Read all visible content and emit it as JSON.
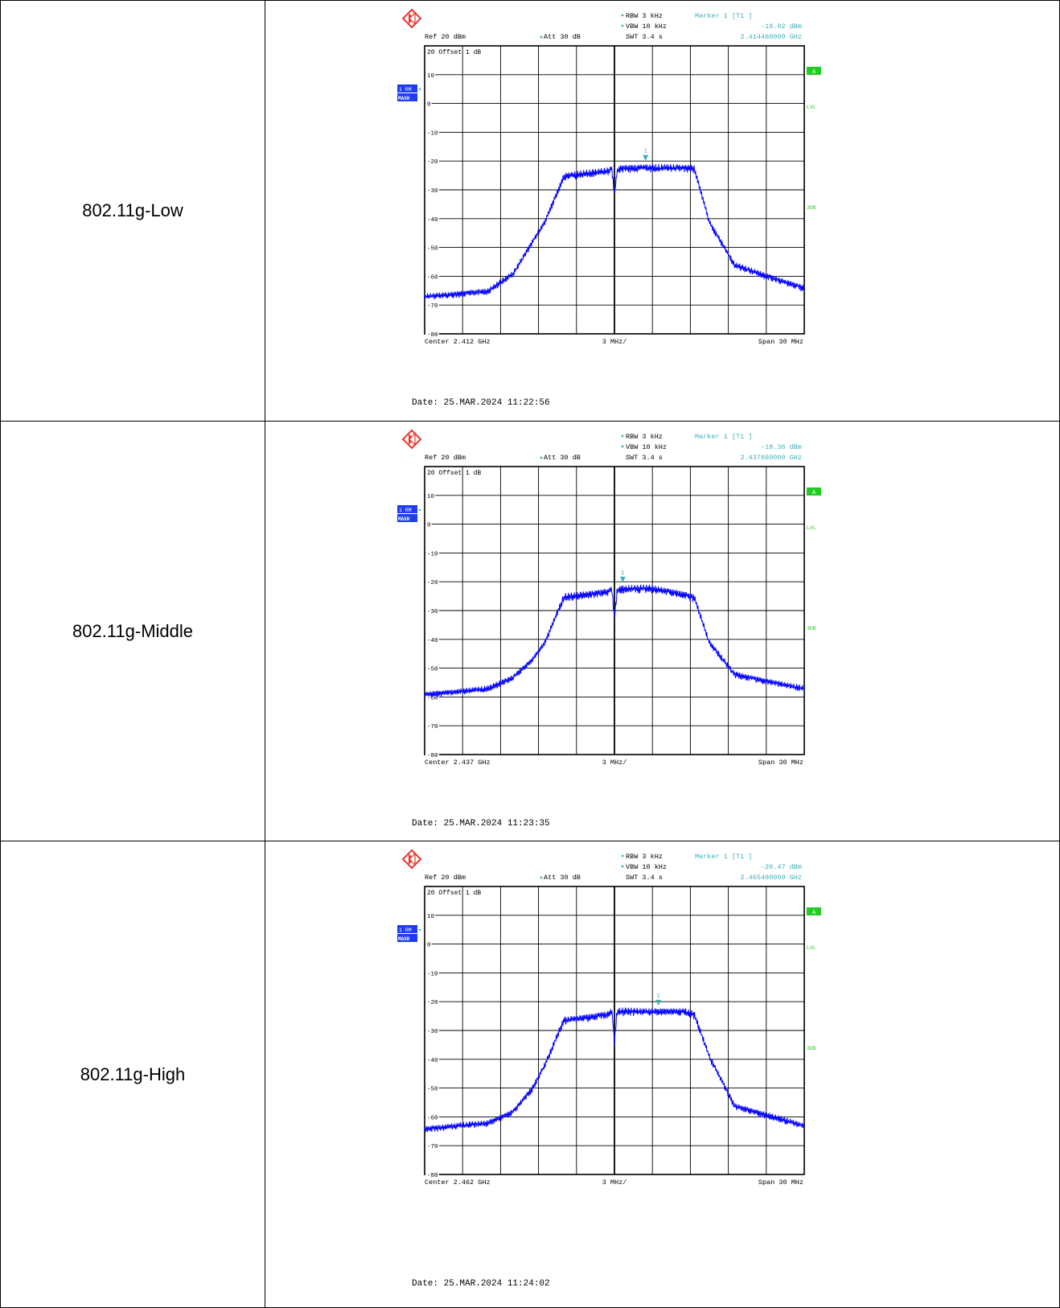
{
  "colors": {
    "trace": "#0000ff",
    "grid": "#000000",
    "info": "#3cb0b8",
    "badge_blue": "#1e3cf0",
    "badge_green": "#22cc22",
    "logo": "#e8352c"
  },
  "rows": [
    {
      "label": "802.11g-Low",
      "date": "Date: 25.MAR.2024  11:22:56",
      "header": {
        "rbw": "RBW 3 kHz",
        "vbw": "VBW 10 kHz",
        "swt": "SWT 3.4 s",
        "ref": "Ref  20 dBm",
        "att": "Att  30 dB",
        "marker_title": "Marker 1 [T1 ]",
        "marker_level": "-19.02 dBm",
        "marker_freq": "2.414460000 GHz"
      },
      "footer": {
        "center": "Center 2.412 GHz",
        "div": "3 MHz/",
        "span": "Span 30 MHz"
      },
      "annotations": {
        "offset": "20 Offset  1 dB",
        "badge1": "1 RM",
        "badge2": "MAXH",
        "a_badge": "A",
        "lvl": "LVL",
        "db3": "3DB"
      },
      "chart_data": {
        "type": "line",
        "x_unit": "GHz",
        "y_unit": "dBm",
        "xlim": [
          2.397,
          2.427
        ],
        "ylim": [
          -80,
          20
        ],
        "y_ticks": [
          "20",
          "10",
          "0",
          "-10",
          "-20",
          "-30",
          "-40",
          "-50",
          "-60",
          "-70",
          "-80"
        ],
        "series": [
          {
            "x": [
              2.397,
              2.402,
              2.404,
              2.4055,
              2.4065,
              2.408,
              2.4115,
              2.4118,
              2.412,
              2.4122,
              2.4125,
              2.415,
              2.4175,
              2.4183,
              2.4195,
              2.4215,
              2.427
            ],
            "y": [
              -66,
              -64,
              -58,
              -47,
              -40,
              -24,
              -22,
              -21,
              -31,
              -22,
              -21,
              -21,
              -21,
              -21,
              -40,
              -55,
              -63
            ]
          }
        ],
        "marker": {
          "x": 2.41446,
          "y": -19.02
        }
      }
    },
    {
      "label": "802.11g-Middle",
      "date": "Date: 25.MAR.2024  11:23:35",
      "header": {
        "rbw": "RBW 3 kHz",
        "vbw": "VBW 10 kHz",
        "swt": "SWT 3.4 s",
        "ref": "Ref  20 dBm",
        "att": "Att  30 dB",
        "marker_title": "Marker 1 [T1 ]",
        "marker_level": "-19.36 dBm",
        "marker_freq": "2.437660000 GHz"
      },
      "footer": {
        "center": "Center 2.437 GHz",
        "div": "3 MHz/",
        "span": "Span 30 MHz"
      },
      "annotations": {
        "offset": "20 Offset  1 dB",
        "badge1": "1 RM",
        "badge2": "MAXH",
        "a_badge": "A",
        "lvl": "LVL",
        "db3": "3DB"
      },
      "chart_data": {
        "type": "line",
        "x_unit": "GHz",
        "y_unit": "dBm",
        "xlim": [
          2.422,
          2.452
        ],
        "ylim": [
          -80,
          20
        ],
        "y_ticks": [
          "20",
          "10",
          "0",
          "-10",
          "-20",
          "-30",
          "-40",
          "-50",
          "-60",
          "-70",
          "-80"
        ],
        "series": [
          {
            "x": [
              2.422,
              2.427,
              2.429,
              2.4305,
              2.4315,
              2.433,
              2.4365,
              2.4368,
              2.437,
              2.4372,
              2.4375,
              2.44,
              2.4425,
              2.4433,
              2.4445,
              2.4465,
              2.452
            ],
            "y": [
              -58,
              -56,
              -52,
              -46,
              -40,
              -24,
              -22,
              -21,
              -31,
              -22,
              -21,
              -21,
              -23,
              -24,
              -40,
              -51,
              -56
            ]
          }
        ],
        "marker": {
          "x": 2.43766,
          "y": -19.36
        }
      }
    },
    {
      "label": "802.11g-High",
      "date": "Date: 25.MAR.2024  11:24:02",
      "header": {
        "rbw": "RBW 3 kHz",
        "vbw": "VBW 10 kHz",
        "swt": "SWT 3.4 s",
        "ref": "Ref  20 dBm",
        "att": "Att  30 dB",
        "marker_title": "Marker 1 [T1 ]",
        "marker_level": "-20.47 dBm",
        "marker_freq": "2.465480000 GHz"
      },
      "footer": {
        "center": "Center 2.462 GHz",
        "div": "3 MHz/",
        "span": "Span 30 MHz"
      },
      "annotations": {
        "offset": "20 Offset  1 dB",
        "badge1": "1 RM",
        "badge2": "MAXH",
        "a_badge": "A",
        "lvl": "LVL",
        "db3": "3DB"
      },
      "chart_data": {
        "type": "line",
        "x_unit": "GHz",
        "y_unit": "dBm",
        "xlim": [
          2.447,
          2.477
        ],
        "ylim": [
          -80,
          20
        ],
        "y_ticks": [
          "20",
          "10",
          "0",
          "-10",
          "-20",
          "-30",
          "-40",
          "-50",
          "-60",
          "-70",
          "-80"
        ],
        "series": [
          {
            "x": [
              2.447,
              2.452,
              2.454,
              2.4555,
              2.4565,
              2.458,
              2.4615,
              2.4618,
              2.462,
              2.4622,
              2.4625,
              2.465,
              2.4675,
              2.4683,
              2.4695,
              2.4715,
              2.477
            ],
            "y": [
              -63,
              -61,
              -57,
              -49,
              -41,
              -25,
              -23,
              -22,
              -33,
              -22,
              -22,
              -22,
              -22,
              -23,
              -38,
              -55,
              -62
            ]
          }
        ],
        "marker": {
          "x": 2.46548,
          "y": -20.47
        }
      }
    }
  ]
}
